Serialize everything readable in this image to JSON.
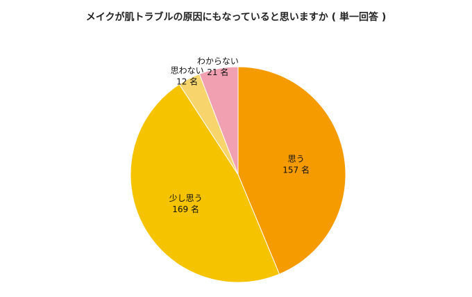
{
  "title": "メイクが肌トラブルの原因にもなっていると思いますか ( 単一回答 )",
  "chart_data": {
    "type": "pie",
    "title": "メイクが肌トラブルの原因にもなっていると思いますか ( 単一回答 )",
    "unit": "名",
    "start": "12 o'clock",
    "direction": "clockwise",
    "slices": [
      {
        "label": "思う",
        "value": 157,
        "value_text": "157 名",
        "color": "#F59B00"
      },
      {
        "label": "少し思う",
        "value": 169,
        "value_text": "169 名",
        "color": "#F5C300"
      },
      {
        "label": "思わない",
        "value": 12,
        "value_text": "12 名",
        "color": "#F7D46C"
      },
      {
        "label": "わからない",
        "value": 21,
        "value_text": "21 名",
        "color": "#F0A0B0"
      }
    ]
  }
}
